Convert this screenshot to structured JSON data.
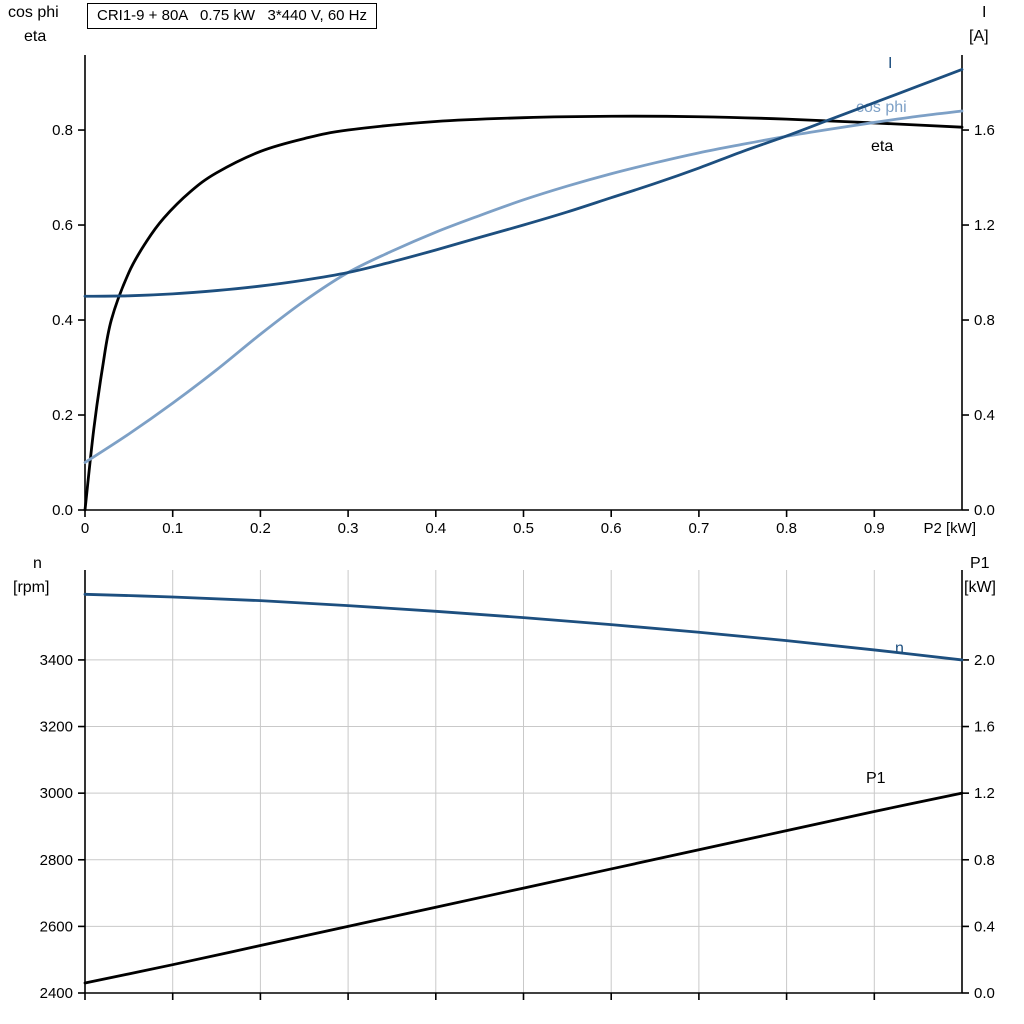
{
  "title_box": {
    "text": "CRI1-9 + 80A   0.75 kW   3*440 V, 60 Hz"
  },
  "colors": {
    "dark_blue": "#1d4f7f",
    "light_blue": "#7da0c6",
    "grid": "#c9c9c9",
    "axis": "#000000",
    "background": "#ffffff"
  },
  "chart_data": [
    {
      "type": "line",
      "title": "CRI1-9 + 80A   0.75 kW   3*440 V, 60 Hz",
      "x_label": "P2 [kW]",
      "xlim": [
        0,
        1.0
      ],
      "x_ticks": [
        "0",
        "0.1",
        "0.2",
        "0.3",
        "0.4",
        "0.5",
        "0.6",
        "0.7",
        "0.8",
        "0.9"
      ],
      "x_tick_labels_visible": true,
      "grid": false,
      "legend_position": "curve-end-labels",
      "left_axis": {
        "label_lines": [
          "cos phi",
          "eta"
        ],
        "lim": [
          0,
          0.958
        ],
        "ticks": [
          "0.0",
          "0.2",
          "0.4",
          "0.6",
          "0.8"
        ]
      },
      "right_axis": {
        "label_lines": [
          "I",
          "[A]"
        ],
        "lim": [
          0,
          1.916
        ],
        "ticks": [
          "0.0",
          "0.4",
          "0.8",
          "1.2",
          "1.6"
        ]
      },
      "series": [
        {
          "name": "eta",
          "axis": "left",
          "color": "#000000",
          "x": [
            0,
            0.01,
            0.02,
            0.03,
            0.05,
            0.07,
            0.09,
            0.12,
            0.15,
            0.2,
            0.25,
            0.3,
            0.4,
            0.5,
            0.6,
            0.7,
            0.8,
            0.9,
            1.0
          ],
          "y": [
            0,
            0.17,
            0.3,
            0.4,
            0.5,
            0.565,
            0.615,
            0.67,
            0.71,
            0.755,
            0.782,
            0.8,
            0.818,
            0.826,
            0.829,
            0.828,
            0.823,
            0.815,
            0.806
          ]
        },
        {
          "name": "cos phi",
          "axis": "left",
          "color": "#7da0c6",
          "x": [
            0,
            0.05,
            0.1,
            0.15,
            0.2,
            0.25,
            0.3,
            0.35,
            0.4,
            0.45,
            0.5,
            0.55,
            0.6,
            0.65,
            0.7,
            0.75,
            0.8,
            0.85,
            0.9,
            0.95,
            1.0
          ],
          "y": [
            0.1,
            0.16,
            0.225,
            0.295,
            0.37,
            0.44,
            0.5,
            0.545,
            0.585,
            0.62,
            0.653,
            0.682,
            0.708,
            0.731,
            0.752,
            0.77,
            0.787,
            0.802,
            0.816,
            0.829,
            0.84
          ]
        },
        {
          "name": "I",
          "axis": "right",
          "color": "#1d4f7f",
          "x": [
            0,
            0.05,
            0.1,
            0.15,
            0.2,
            0.25,
            0.3,
            0.35,
            0.4,
            0.45,
            0.5,
            0.55,
            0.6,
            0.65,
            0.7,
            0.75,
            0.8,
            0.85,
            0.9,
            0.95,
            1.0
          ],
          "y": [
            0.9,
            0.902,
            0.91,
            0.924,
            0.943,
            0.968,
            1.0,
            1.045,
            1.095,
            1.148,
            1.2,
            1.255,
            1.315,
            1.375,
            1.44,
            1.51,
            1.575,
            1.645,
            1.715,
            1.785,
            1.855
          ]
        }
      ]
    },
    {
      "type": "line",
      "x_label": "",
      "xlim": [
        0,
        1.0
      ],
      "x_ticks": [
        "0",
        "0.1",
        "0.2",
        "0.3",
        "0.4",
        "0.5",
        "0.6",
        "0.7",
        "0.8",
        "0.9"
      ],
      "x_tick_labels_visible": false,
      "grid": true,
      "legend_position": "curve-end-labels",
      "left_axis": {
        "label_lines": [
          "n",
          "[rpm]"
        ],
        "lim": [
          2400,
          3670
        ],
        "ticks": [
          "2400",
          "2600",
          "2800",
          "3000",
          "3200",
          "3400"
        ]
      },
      "right_axis": {
        "label_lines": [
          "P1",
          "[kW]"
        ],
        "lim": [
          0,
          2.54
        ],
        "ticks": [
          "0.0",
          "0.4",
          "0.8",
          "1.2",
          "1.6",
          "2.0"
        ]
      },
      "series": [
        {
          "name": "n",
          "axis": "left",
          "color": "#1d4f7f",
          "x": [
            0,
            0.1,
            0.2,
            0.3,
            0.4,
            0.5,
            0.6,
            0.7,
            0.8,
            0.9,
            1.0
          ],
          "y": [
            3597,
            3589,
            3578,
            3563,
            3546,
            3527,
            3506,
            3483,
            3458,
            3430,
            3400
          ]
        },
        {
          "name": "P1",
          "axis": "right",
          "color": "#000000",
          "x": [
            0,
            0.1,
            0.2,
            0.3,
            0.4,
            0.5,
            0.6,
            0.7,
            0.8,
            0.9,
            1.0
          ],
          "y": [
            0.06,
            0.17,
            0.285,
            0.4,
            0.515,
            0.63,
            0.745,
            0.86,
            0.975,
            1.09,
            1.2
          ]
        }
      ]
    }
  ]
}
